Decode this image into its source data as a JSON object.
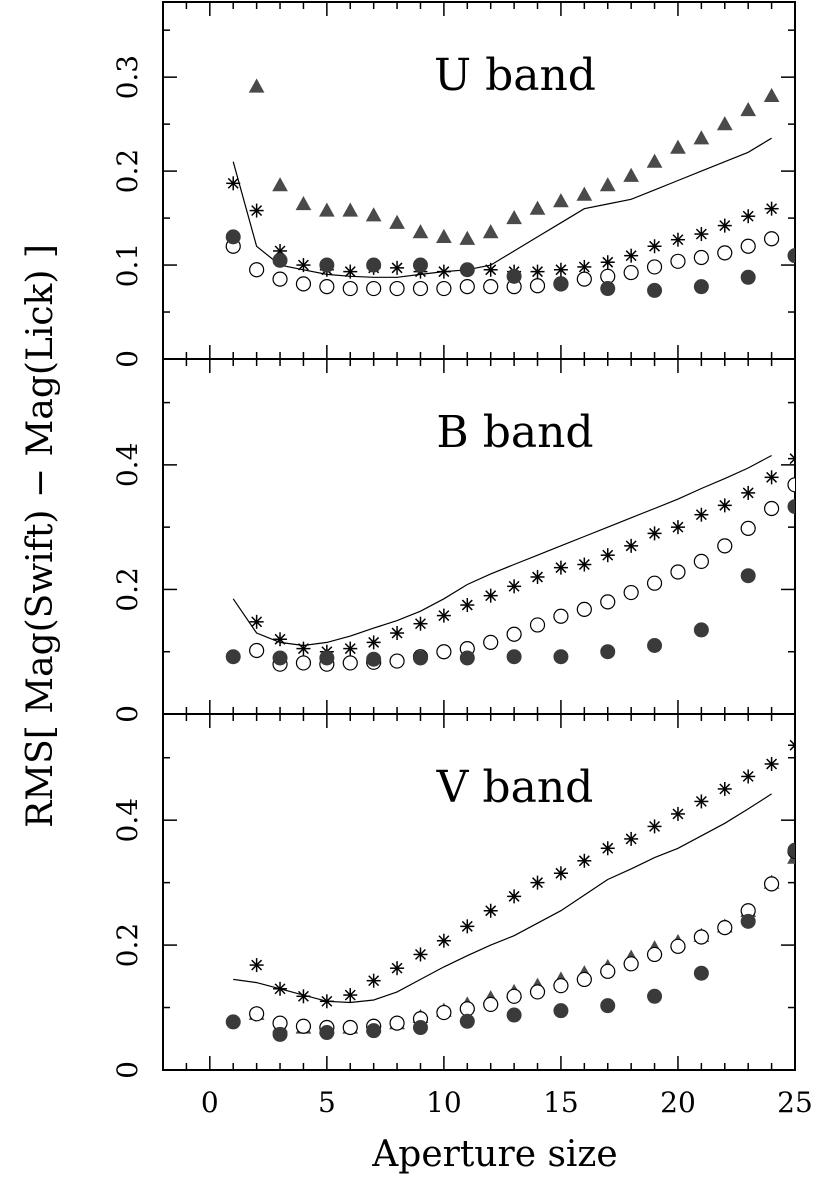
{
  "chart_data": {
    "type": "scatter",
    "xlabel": "Aperture size",
    "ylabel": "RMS[ Mag(Swift) − Mag(Lick) ]",
    "xlim": [
      -2,
      25
    ],
    "xticks": [
      0,
      5,
      10,
      15,
      20,
      25
    ],
    "xtick_labels": [
      "0",
      "5",
      "10",
      "15",
      "20",
      "25"
    ],
    "grid": false,
    "panels": [
      {
        "title": "U band",
        "ylim": [
          0,
          0.38
        ],
        "yticks": [
          0,
          0.1,
          0.2,
          0.3
        ],
        "ytick_labels": [
          "0",
          "0.1",
          "0.2",
          "0.3"
        ],
        "line": {
          "x": [
            1,
            2,
            3,
            4,
            5,
            6,
            7,
            8,
            9,
            10,
            11,
            12,
            13,
            14,
            15,
            16,
            17,
            18,
            19,
            20,
            21,
            22,
            23,
            24
          ],
          "y": [
            0.21,
            0.12,
            0.1,
            0.095,
            0.09,
            0.088,
            0.087,
            0.087,
            0.09,
            0.093,
            0.095,
            0.1,
            0.115,
            0.13,
            0.145,
            0.16,
            0.165,
            0.17,
            0.18,
            0.19,
            0.2,
            0.21,
            0.22,
            0.235
          ]
        },
        "series": [
          {
            "marker": "triangle",
            "x": [
              2,
              3,
              4,
              5,
              6,
              7,
              8,
              9,
              10,
              11,
              12,
              13,
              14,
              15,
              16,
              17,
              18,
              19,
              20,
              21,
              22,
              23,
              24
            ],
            "y": [
              0.29,
              0.185,
              0.165,
              0.158,
              0.158,
              0.153,
              0.145,
              0.135,
              0.13,
              0.128,
              0.135,
              0.15,
              0.16,
              0.168,
              0.175,
              0.185,
              0.195,
              0.21,
              0.225,
              0.235,
              0.25,
              0.265,
              0.28
            ]
          },
          {
            "marker": "asterisk",
            "x": [
              1,
              2,
              3,
              4,
              5,
              6,
              7,
              8,
              9,
              10,
              11,
              12,
              13,
              14,
              15,
              16,
              17,
              18,
              19,
              20,
              21,
              22,
              23,
              24
            ],
            "y": [
              0.187,
              0.158,
              0.115,
              0.1,
              0.095,
              0.093,
              0.097,
              0.097,
              0.093,
              0.093,
              0.095,
              0.095,
              0.093,
              0.093,
              0.095,
              0.098,
              0.103,
              0.11,
              0.12,
              0.127,
              0.133,
              0.142,
              0.152,
              0.16
            ]
          },
          {
            "marker": "open-circle",
            "x": [
              1,
              2,
              3,
              4,
              5,
              6,
              7,
              8,
              9,
              10,
              11,
              12,
              13,
              14,
              15,
              16,
              17,
              18,
              19,
              20,
              21,
              22,
              23,
              24
            ],
            "y": [
              0.12,
              0.095,
              0.085,
              0.08,
              0.077,
              0.075,
              0.075,
              0.075,
              0.075,
              0.075,
              0.077,
              0.077,
              0.077,
              0.078,
              0.08,
              0.085,
              0.088,
              0.092,
              0.098,
              0.104,
              0.108,
              0.113,
              0.12,
              0.128
            ]
          },
          {
            "marker": "filled-circle",
            "x": [
              1,
              3,
              5,
              7,
              9,
              11,
              13,
              15,
              17,
              19,
              21,
              23,
              25
            ],
            "y": [
              0.13,
              0.105,
              0.1,
              0.1,
              0.1,
              0.095,
              0.088,
              0.08,
              0.075,
              0.073,
              0.077,
              0.087,
              0.11
            ]
          }
        ]
      },
      {
        "title": "B band",
        "ylim": [
          0,
          0.57
        ],
        "yticks": [
          0,
          0.2,
          0.4
        ],
        "ytick_labels": [
          "0",
          "0.2",
          "0.4"
        ],
        "line": {
          "x": [
            1,
            2,
            3,
            4,
            5,
            6,
            7,
            8,
            9,
            10,
            11,
            12,
            13,
            14,
            15,
            16,
            17,
            18,
            19,
            20,
            21,
            22,
            23,
            24
          ],
          "y": [
            0.185,
            0.13,
            0.115,
            0.11,
            0.115,
            0.125,
            0.138,
            0.15,
            0.165,
            0.185,
            0.208,
            0.225,
            0.24,
            0.255,
            0.27,
            0.285,
            0.3,
            0.315,
            0.33,
            0.345,
            0.362,
            0.378,
            0.395,
            0.415
          ]
        },
        "series": [
          {
            "marker": "asterisk",
            "x": [
              2,
              3,
              4,
              5,
              6,
              7,
              8,
              9,
              10,
              11,
              12,
              13,
              14,
              15,
              16,
              17,
              18,
              19,
              20,
              21,
              22,
              23,
              24,
              25
            ],
            "y": [
              0.148,
              0.12,
              0.105,
              0.1,
              0.105,
              0.115,
              0.13,
              0.145,
              0.158,
              0.175,
              0.19,
              0.205,
              0.22,
              0.235,
              0.24,
              0.255,
              0.27,
              0.29,
              0.3,
              0.32,
              0.335,
              0.355,
              0.38,
              0.41
            ]
          },
          {
            "marker": "open-circle",
            "x": [
              2,
              3,
              4,
              5,
              6,
              7,
              8,
              9,
              10,
              11,
              12,
              13,
              14,
              15,
              16,
              17,
              18,
              19,
              20,
              21,
              22,
              23,
              24,
              25
            ],
            "y": [
              0.102,
              0.08,
              0.082,
              0.08,
              0.082,
              0.083,
              0.085,
              0.092,
              0.1,
              0.105,
              0.115,
              0.128,
              0.143,
              0.157,
              0.168,
              0.18,
              0.195,
              0.21,
              0.228,
              0.245,
              0.27,
              0.298,
              0.33,
              0.368
            ]
          },
          {
            "marker": "filled-circle",
            "x": [
              1,
              3,
              5,
              7,
              9,
              11,
              13,
              15,
              17,
              19,
              21,
              23,
              25
            ],
            "y": [
              0.092,
              0.09,
              0.09,
              0.088,
              0.09,
              0.09,
              0.092,
              0.092,
              0.1,
              0.11,
              0.135,
              0.222,
              0.333
            ]
          }
        ]
      },
      {
        "title": "V band",
        "ylim": [
          0,
          0.57
        ],
        "yticks": [
          0,
          0.2,
          0.4
        ],
        "ytick_labels": [
          "0",
          "0.2",
          "0.4"
        ],
        "line": {
          "x": [
            1,
            2,
            3,
            4,
            5,
            6,
            7,
            8,
            9,
            10,
            11,
            12,
            13,
            14,
            15,
            16,
            17,
            18,
            19,
            20,
            21,
            22,
            23,
            24
          ],
          "y": [
            0.145,
            0.14,
            0.13,
            0.12,
            0.11,
            0.108,
            0.112,
            0.125,
            0.145,
            0.165,
            0.183,
            0.2,
            0.215,
            0.235,
            0.255,
            0.28,
            0.305,
            0.322,
            0.34,
            0.355,
            0.375,
            0.395,
            0.418,
            0.442
          ]
        },
        "series": [
          {
            "marker": "asterisk",
            "x": [
              2,
              3,
              4,
              5,
              6,
              7,
              8,
              9,
              10,
              11,
              12,
              13,
              14,
              15,
              16,
              17,
              18,
              19,
              20,
              21,
              22,
              23,
              24,
              25
            ],
            "y": [
              0.168,
              0.13,
              0.118,
              0.11,
              0.12,
              0.143,
              0.163,
              0.185,
              0.207,
              0.23,
              0.255,
              0.278,
              0.3,
              0.315,
              0.335,
              0.355,
              0.37,
              0.39,
              0.41,
              0.43,
              0.45,
              0.47,
              0.49,
              0.52
            ]
          },
          {
            "marker": "triangle",
            "x": [
              2,
              3,
              4,
              5,
              6,
              7,
              8,
              9,
              10,
              11,
              12,
              13,
              14,
              15,
              16,
              17,
              18,
              19,
              20,
              21,
              22,
              23,
              24,
              25
            ],
            "y": [
              0.09,
              0.07,
              0.068,
              0.068,
              0.068,
              0.07,
              0.075,
              0.085,
              0.095,
              0.105,
              0.115,
              0.125,
              0.135,
              0.145,
              0.155,
              0.165,
              0.18,
              0.195,
              0.205,
              0.215,
              0.23,
              0.255,
              0.3,
              0.34
            ]
          },
          {
            "marker": "open-circle",
            "x": [
              2,
              3,
              4,
              5,
              6,
              7,
              8,
              9,
              10,
              11,
              12,
              13,
              14,
              15,
              16,
              17,
              18,
              19,
              20,
              21,
              22,
              23,
              24,
              25
            ],
            "y": [
              0.09,
              0.075,
              0.07,
              0.068,
              0.068,
              0.07,
              0.075,
              0.082,
              0.092,
              0.098,
              0.105,
              0.118,
              0.125,
              0.135,
              0.145,
              0.158,
              0.17,
              0.185,
              0.198,
              0.213,
              0.228,
              0.255,
              0.298,
              0.35
            ]
          },
          {
            "marker": "filled-circle",
            "x": [
              1,
              3,
              5,
              7,
              9,
              11,
              13,
              15,
              17,
              19,
              21,
              23,
              25
            ],
            "y": [
              0.077,
              0.057,
              0.06,
              0.063,
              0.068,
              0.078,
              0.088,
              0.095,
              0.103,
              0.118,
              0.155,
              0.238,
              0.352
            ]
          }
        ]
      }
    ]
  }
}
